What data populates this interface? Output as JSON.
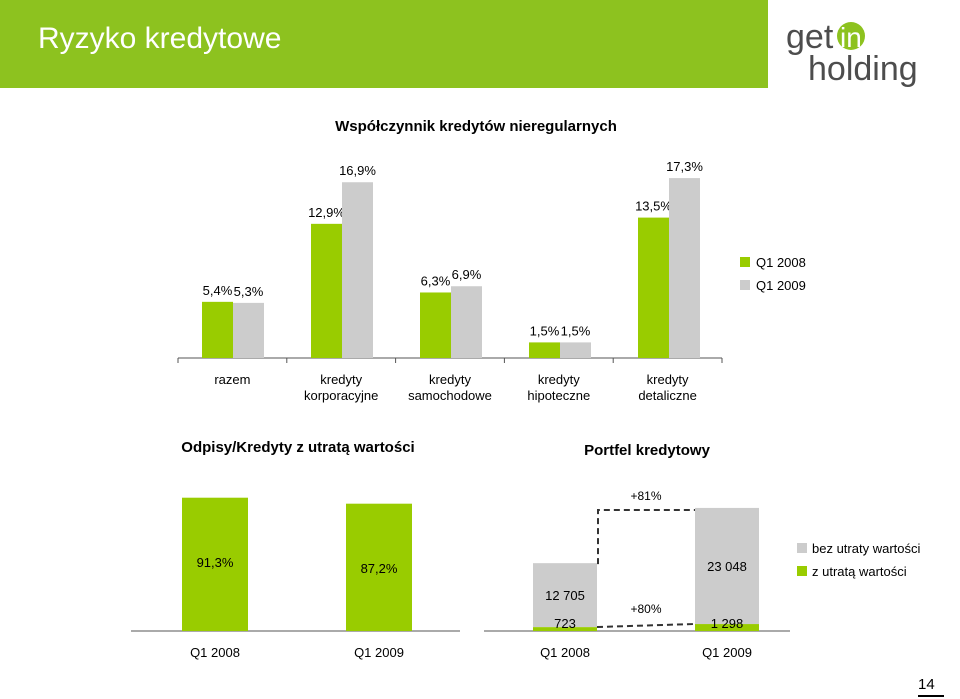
{
  "header": {
    "title": "Ryzyko kredytowe"
  },
  "logo": {
    "line1": "get",
    "highlight": "in",
    "line2": "holding"
  },
  "page_number": "14",
  "colors": {
    "green": "#99cc00",
    "grey": "#cccccc",
    "header_green": "#8dc21f"
  },
  "chart_data": [
    {
      "type": "bar",
      "title": "Współczynnik kredytów nieregularnych",
      "categories": [
        "razem",
        "kredyty korporacyjne",
        "kredyty samochodowe",
        "kredyty hipoteczne",
        "kredyty detaliczne"
      ],
      "category_lines": [
        [
          "razem"
        ],
        [
          "kredyty",
          "korporacyjne"
        ],
        [
          "kredyty",
          "samochodowe"
        ],
        [
          "kredyty",
          "hipoteczne"
        ],
        [
          "kredyty",
          "detaliczne"
        ]
      ],
      "series": [
        {
          "name": "Q1 2008",
          "values": [
            5.4,
            12.9,
            6.3,
            1.5,
            13.5
          ],
          "labels": [
            "5,4%",
            "12,9%",
            "6,3%",
            "1,5%",
            "13,5%"
          ]
        },
        {
          "name": "Q1 2009",
          "values": [
            5.3,
            16.9,
            6.9,
            1.5,
            17.3
          ],
          "labels": [
            "5,3%",
            "16,9%",
            "6,9%",
            "1,5%",
            "17,3%"
          ]
        }
      ],
      "legend": "right"
    },
    {
      "type": "bar",
      "title": "Odpisy/Kredyty z utratą wartości",
      "categories": [
        "Q1 2008",
        "Q1 2009"
      ],
      "values": [
        91.3,
        87.2
      ],
      "labels": [
        "91,3%",
        "87,2%"
      ]
    },
    {
      "type": "bar",
      "stacked": true,
      "title": "Portfel kredytowy",
      "categories": [
        "Q1 2008",
        "Q1 2009"
      ],
      "series": [
        {
          "name": "z utratą wartości",
          "values": [
            723,
            1298
          ],
          "labels": [
            "723",
            "1 298"
          ]
        },
        {
          "name": "bez utraty wartości",
          "values": [
            11982,
            21750
          ],
          "total_labels": [
            "12 705",
            "23 048"
          ]
        }
      ],
      "annotations": [
        "+81%",
        "+80%"
      ],
      "legend_order": [
        "bez utraty wartości",
        "z utratą wartości"
      ]
    }
  ]
}
